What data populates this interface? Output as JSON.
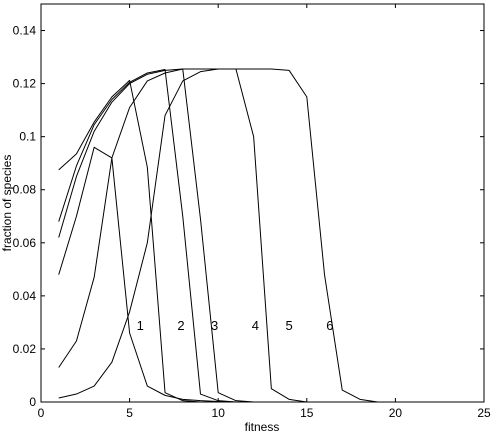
{
  "chart_data": {
    "type": "line",
    "xlabel": "fitness",
    "ylabel": "fraction of species",
    "xlim": [
      0,
      25
    ],
    "ylim": [
      0,
      0.15
    ],
    "xticks": [
      0,
      5,
      10,
      15,
      20,
      25
    ],
    "yticks": [
      0,
      0.02,
      0.04,
      0.06,
      0.08,
      0.1,
      0.12,
      0.14
    ],
    "xtick_labels": [
      "0",
      "5",
      "10",
      "15",
      "20",
      "25"
    ],
    "ytick_labels": [
      "0",
      "0.02",
      "0.04",
      "0.06",
      "0.08",
      "0.1",
      "0.12",
      "0.14"
    ],
    "grid": false,
    "legend": "none",
    "line_color": "#000000",
    "x": [
      1,
      2,
      3,
      4,
      5,
      6,
      7,
      8,
      9,
      10,
      11,
      12,
      13,
      14,
      15,
      16,
      17,
      18,
      19
    ],
    "series": [
      {
        "values": [
          0.0875,
          0.0935,
          0.1055,
          0.115,
          0.1212,
          0.0885,
          0.0035,
          0.0005,
          0.0,
          0.0,
          0.0,
          0.0,
          0.0,
          0.0,
          0.0,
          0.0,
          0.0,
          0.0,
          0.0
        ]
      },
      {
        "values": [
          0.068,
          0.089,
          0.1045,
          0.114,
          0.1205,
          0.124,
          0.1253,
          0.07,
          0.003,
          0.0005,
          0.0,
          0.0,
          0.0,
          0.0,
          0.0,
          0.0,
          0.0,
          0.0,
          0.0
        ]
      },
      {
        "values": [
          0.062,
          0.085,
          0.102,
          0.113,
          0.12,
          0.1235,
          0.125,
          0.1255,
          0.069,
          0.0035,
          0.0005,
          0.0,
          0.0,
          0.0,
          0.0,
          0.0,
          0.0,
          0.0,
          0.0
        ]
      },
      {
        "values": [
          0.048,
          0.07,
          0.096,
          0.092,
          0.026,
          0.006,
          0.0025,
          0.001,
          0.0005,
          0.0002,
          0.0,
          0.0,
          0.0,
          0.0,
          0.0,
          0.0,
          0.0,
          0.0,
          0.0
        ]
      },
      {
        "values": [
          0.013,
          0.023,
          0.047,
          0.092,
          0.111,
          0.121,
          0.124,
          0.1255,
          0.1255,
          0.1255,
          0.1255,
          0.1,
          0.005,
          0.001,
          0.0,
          0.0,
          0.0,
          0.0,
          0.0
        ]
      },
      {
        "values": [
          0.0015,
          0.003,
          0.006,
          0.015,
          0.034,
          0.06,
          0.108,
          0.121,
          0.1245,
          0.1255,
          0.1255,
          0.1255,
          0.1255,
          0.125,
          0.115,
          0.048,
          0.0045,
          0.001,
          0.0
        ]
      }
    ],
    "annotations": [
      {
        "text": "1",
        "x": 5.6,
        "y": 0.029
      },
      {
        "text": "2",
        "x": 7.9,
        "y": 0.029
      },
      {
        "text": "3",
        "x": 9.8,
        "y": 0.029
      },
      {
        "text": "4",
        "x": 12.1,
        "y": 0.029
      },
      {
        "text": "5",
        "x": 14.0,
        "y": 0.029
      },
      {
        "text": "6",
        "x": 16.3,
        "y": 0.029
      }
    ]
  }
}
